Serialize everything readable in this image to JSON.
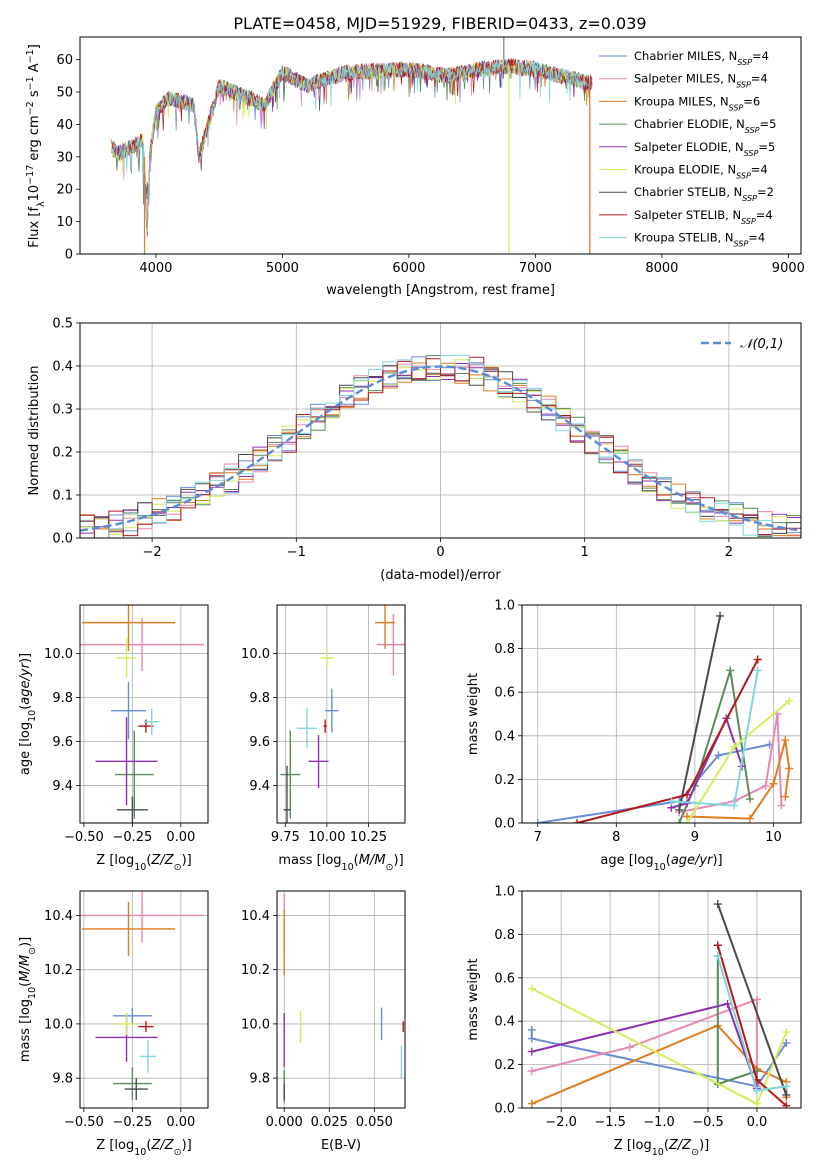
{
  "title": "PLATE=0458, MJD=51929, FIBERID=0433, z=0.039",
  "models": [
    {
      "name": "Chabrier MILES",
      "nssp": "4",
      "color": "#6a8bd6"
    },
    {
      "name": "Salpeter MILES",
      "nssp": "4",
      "color": "#e887b5"
    },
    {
      "name": "Kroupa MILES",
      "nssp": "6",
      "color": "#e07c22"
    },
    {
      "name": "Chabrier ELODIE",
      "nssp": "5",
      "color": "#5b8a5b"
    },
    {
      "name": "Salpeter ELODIE",
      "nssp": "5",
      "color": "#8e30b0"
    },
    {
      "name": "Kroupa ELODIE",
      "nssp": "4",
      "color": "#d6ec5a"
    },
    {
      "name": "Chabrier STELIB",
      "nssp": "2",
      "color": "#4a4a4a"
    },
    {
      "name": "Salpeter STELIB",
      "nssp": "4",
      "color": "#b3191c"
    },
    {
      "name": "Kroupa STELIB",
      "nssp": "4",
      "color": "#7fd6dc"
    }
  ],
  "chart_data": [
    {
      "id": "spectrum",
      "type": "line",
      "xlabel": "wavelength [Angstrom, rest frame]",
      "ylabel": "Flux [f_λ 10^-17 erg cm^-2 s^-1 A^-1]",
      "xlim": [
        3400,
        9100
      ],
      "ylim": [
        0,
        67
      ],
      "xticks": [
        4000,
        5000,
        6000,
        7000,
        8000,
        9000
      ],
      "yticks": [
        0,
        10,
        20,
        30,
        40,
        50,
        60
      ],
      "grid": false,
      "legend": "top-right",
      "x_range_data": [
        3650,
        7450
      ],
      "key_points": [
        [
          3650,
          33
        ],
        [
          3700,
          31
        ],
        [
          3800,
          33
        ],
        [
          3900,
          35
        ],
        [
          3930,
          5
        ],
        [
          3950,
          30
        ],
        [
          4000,
          44
        ],
        [
          4100,
          48
        ],
        [
          4300,
          46
        ],
        [
          4340,
          30
        ],
        [
          4500,
          52
        ],
        [
          4860,
          46
        ],
        [
          5000,
          56
        ],
        [
          5200,
          52
        ],
        [
          5500,
          56
        ],
        [
          6000,
          57
        ],
        [
          6300,
          55
        ],
        [
          6563,
          57
        ],
        [
          6800,
          58
        ],
        [
          7000,
          57
        ],
        [
          7200,
          55
        ],
        [
          7400,
          53
        ]
      ],
      "spikes_to_zero": [
        3910,
        6790,
        7430
      ]
    },
    {
      "id": "residual-hist",
      "type": "histogram",
      "xlabel": "(data-model)/error",
      "ylabel": "Normed distribution",
      "xlim": [
        -2.5,
        2.5
      ],
      "ylim": [
        0,
        0.5
      ],
      "xticks": [
        -2,
        -1,
        0,
        1,
        2
      ],
      "yticks": [
        0.0,
        0.1,
        0.2,
        0.3,
        0.4,
        0.5
      ],
      "grid": true,
      "legend": "top-right",
      "reference_curve": {
        "name": "𝒩(0,1)",
        "color": "#5b8ad6",
        "style": "dashed"
      },
      "bin_width": 0.1
    },
    {
      "id": "age-vs-Z",
      "type": "errorbar",
      "xlabel": "Z [log10(Z/Z⊙)]",
      "ylabel": "age  [log10(age/yr)]",
      "xlim": [
        -0.52,
        0.14
      ],
      "ylim": [
        9.23,
        10.22
      ],
      "xticks": [
        -0.5,
        -0.25,
        0.0
      ],
      "yticks": [
        9.4,
        9.6,
        9.8,
        10.0
      ],
      "grid": true,
      "points": [
        {
          "x": -0.27,
          "y": 9.74,
          "xerr": 0.09,
          "yerr": 0.13
        },
        {
          "x": -0.2,
          "y": 10.04,
          "xerr": 0.32,
          "yerr": 0.12
        },
        {
          "x": -0.27,
          "y": 10.14,
          "xerr": 0.24,
          "yerr": 0.13
        },
        {
          "x": -0.24,
          "y": 9.45,
          "xerr": 0.1,
          "yerr": 0.2
        },
        {
          "x": -0.28,
          "y": 9.51,
          "xerr": 0.16,
          "yerr": 0.2
        },
        {
          "x": -0.28,
          "y": 9.98,
          "xerr": 0.05,
          "yerr": 0.09
        },
        {
          "x": -0.25,
          "y": 9.29,
          "xerr": 0.08,
          "yerr": 0.06
        },
        {
          "x": -0.18,
          "y": 9.67,
          "xerr": 0.04,
          "yerr": 0.03
        },
        {
          "x": -0.15,
          "y": 9.69,
          "xerr": 0.04,
          "yerr": 0.06
        }
      ]
    },
    {
      "id": "age-vs-mass",
      "type": "errorbar",
      "xlabel": "mass [log10(M/M⊙)]",
      "ylabel": "",
      "xlim": [
        9.7,
        10.47
      ],
      "ylim": [
        9.23,
        10.22
      ],
      "xticks": [
        9.75,
        10.0,
        10.25
      ],
      "yticks": [
        9.4,
        9.6,
        9.8,
        10.0
      ],
      "grid": true,
      "points": [
        {
          "x": 10.03,
          "y": 9.74,
          "xerr": 0.04,
          "yerr": 0.1
        },
        {
          "x": 10.4,
          "y": 10.04,
          "xerr": 0.1,
          "yerr": 0.14
        },
        {
          "x": 10.35,
          "y": 10.14,
          "xerr": 0.06,
          "yerr": 0.12
        },
        {
          "x": 9.78,
          "y": 9.45,
          "xerr": 0.06,
          "yerr": 0.2
        },
        {
          "x": 9.95,
          "y": 9.51,
          "xerr": 0.06,
          "yerr": 0.12
        },
        {
          "x": 10.0,
          "y": 9.98,
          "xerr": 0.04,
          "yerr": 0.05
        },
        {
          "x": 9.76,
          "y": 9.29,
          "xerr": 0.02,
          "yerr": 0.2
        },
        {
          "x": 9.99,
          "y": 9.67,
          "xerr": 0.01,
          "yerr": 0.03
        },
        {
          "x": 9.88,
          "y": 9.66,
          "xerr": 0.06,
          "yerr": 0.09
        }
      ]
    },
    {
      "id": "mass-weight-vs-age",
      "type": "line",
      "xlabel": "age  [log10(age/yr)]",
      "ylabel": "mass weight",
      "xlim": [
        6.8,
        10.35
      ],
      "ylim": [
        0,
        1.0
      ],
      "xticks": [
        7,
        8,
        9,
        10
      ],
      "yticks": [
        0.0,
        0.2,
        0.4,
        0.6,
        0.8,
        1.0
      ],
      "grid": true,
      "series": [
        {
          "x": [
            7.0,
            8.8,
            9.3,
            9.95
          ],
          "y": [
            0.0,
            0.1,
            0.31,
            0.36
          ]
        },
        {
          "x": [
            8.8,
            9.5,
            9.9,
            10.05,
            10.1
          ],
          "y": [
            0.05,
            0.1,
            0.17,
            0.5,
            0.08
          ]
        },
        {
          "x": [
            8.9,
            9.7,
            10.0,
            10.15,
            10.2,
            10.15
          ],
          "y": [
            0.03,
            0.02,
            0.18,
            0.38,
            0.25,
            0.12
          ]
        },
        {
          "x": [
            8.8,
            9.0,
            9.45,
            9.7
          ],
          "y": [
            0.0,
            0.17,
            0.7,
            0.11
          ]
        },
        {
          "x": [
            8.7,
            8.9,
            9.4,
            9.6
          ],
          "y": [
            0.07,
            0.09,
            0.48,
            0.26
          ]
        },
        {
          "x": [
            8.9,
            9.5,
            10.2
          ],
          "y": [
            0.0,
            0.35,
            0.56
          ]
        },
        {
          "x": [
            8.8,
            9.32
          ],
          "y": [
            0.06,
            0.95
          ]
        },
        {
          "x": [
            7.5,
            8.9,
            9.8
          ],
          "y": [
            0.0,
            0.13,
            0.75
          ]
        },
        {
          "x": [
            8.7,
            9.5,
            9.8
          ],
          "y": [
            0.1,
            0.08,
            0.7
          ]
        }
      ]
    },
    {
      "id": "mass-vs-Z",
      "type": "errorbar",
      "xlabel": "Z [log10(Z/Z⊙)]",
      "ylabel": "mass [log10(M/M⊙)]",
      "xlim": [
        -0.52,
        0.14
      ],
      "ylim": [
        9.69,
        10.49
      ],
      "xticks": [
        -0.5,
        -0.25,
        0.0
      ],
      "yticks": [
        9.8,
        10.0,
        10.2,
        10.4
      ],
      "grid": true,
      "points": [
        {
          "x": -0.25,
          "y": 10.03,
          "xerr": 0.1,
          "yerr": 0.03
        },
        {
          "x": -0.2,
          "y": 10.4,
          "xerr": 0.32,
          "yerr": 0.1
        },
        {
          "x": -0.27,
          "y": 10.35,
          "xerr": 0.24,
          "yerr": 0.1
        },
        {
          "x": -0.25,
          "y": 9.78,
          "xerr": 0.1,
          "yerr": 0.06
        },
        {
          "x": -0.28,
          "y": 9.95,
          "xerr": 0.16,
          "yerr": 0.09
        },
        {
          "x": -0.28,
          "y": 10.0,
          "xerr": 0.05,
          "yerr": 0.04
        },
        {
          "x": -0.23,
          "y": 9.76,
          "xerr": 0.06,
          "yerr": 0.04
        },
        {
          "x": -0.18,
          "y": 9.99,
          "xerr": 0.04,
          "yerr": 0.02
        },
        {
          "x": -0.17,
          "y": 9.88,
          "xerr": 0.04,
          "yerr": 0.06
        }
      ]
    },
    {
      "id": "mass-vs-ebv",
      "type": "errorbar",
      "xlabel": "E(B-V)",
      "ylabel": "",
      "xlim": [
        -0.004,
        0.067
      ],
      "ylim": [
        9.69,
        10.49
      ],
      "xticks": [
        0.0,
        0.025,
        0.05
      ],
      "yticks": [
        9.8,
        10.0,
        10.2,
        10.4
      ],
      "grid": true,
      "points": [
        {
          "x": 0.054,
          "y": 10.0,
          "xerr": 0,
          "yerr": 0.06
        },
        {
          "x": 0.0,
          "y": 10.38,
          "xerr": 0,
          "yerr": 0.1
        },
        {
          "x": 0.0,
          "y": 10.3,
          "xerr": 0,
          "yerr": 0.12
        },
        {
          "x": 0.0,
          "y": 9.77,
          "xerr": 0,
          "yerr": 0.06
        },
        {
          "x": 0.0,
          "y": 9.94,
          "xerr": 0,
          "yerr": 0.1
        },
        {
          "x": 0.009,
          "y": 9.99,
          "xerr": 0,
          "yerr": 0.06
        },
        {
          "x": 0.0,
          "y": 9.75,
          "xerr": 0,
          "yerr": 0.03
        },
        {
          "x": 0.066,
          "y": 9.99,
          "xerr": 0,
          "yerr": 0.02
        },
        {
          "x": 0.065,
          "y": 9.86,
          "xerr": 0,
          "yerr": 0.06
        }
      ]
    },
    {
      "id": "mass-weight-vs-Z",
      "type": "line",
      "xlabel": "Z [log10(Z/Z⊙)]",
      "ylabel": "mass weight",
      "xlim": [
        -2.4,
        0.45
      ],
      "ylim": [
        0,
        1.0
      ],
      "xticks": [
        -2.0,
        -1.5,
        -1.0,
        -0.5,
        0.0
      ],
      "yticks": [
        0.0,
        0.2,
        0.4,
        0.6,
        0.8,
        1.0
      ],
      "grid": true,
      "series": [
        {
          "x": [
            -2.3,
            -2.3,
            0.0,
            0.3
          ],
          "y": [
            0.36,
            0.32,
            0.1,
            0.3
          ]
        },
        {
          "x": [
            -2.3,
            -1.3,
            0.0,
            0.0
          ],
          "y": [
            0.17,
            0.28,
            0.5,
            0.1
          ]
        },
        {
          "x": [
            -2.3,
            -0.4,
            0.0,
            0.3,
            0.3
          ],
          "y": [
            0.02,
            0.38,
            0.18,
            0.12,
            0.05
          ]
        },
        {
          "x": [
            -0.4,
            -0.4,
            0.0
          ],
          "y": [
            0.7,
            0.11,
            0.17
          ]
        },
        {
          "x": [
            -2.3,
            -0.3,
            0.0
          ],
          "y": [
            0.26,
            0.48,
            0.09
          ]
        },
        {
          "x": [
            -2.3,
            0.0,
            0.3
          ],
          "y": [
            0.55,
            0.02,
            0.35
          ]
        },
        {
          "x": [
            -0.4,
            0.3
          ],
          "y": [
            0.94,
            0.06
          ]
        },
        {
          "x": [
            -0.4,
            0.0,
            0.3
          ],
          "y": [
            0.75,
            0.13,
            0.01
          ]
        },
        {
          "x": [
            -0.4,
            0.0,
            0.3
          ],
          "y": [
            0.7,
            0.08,
            0.1
          ]
        }
      ]
    }
  ]
}
